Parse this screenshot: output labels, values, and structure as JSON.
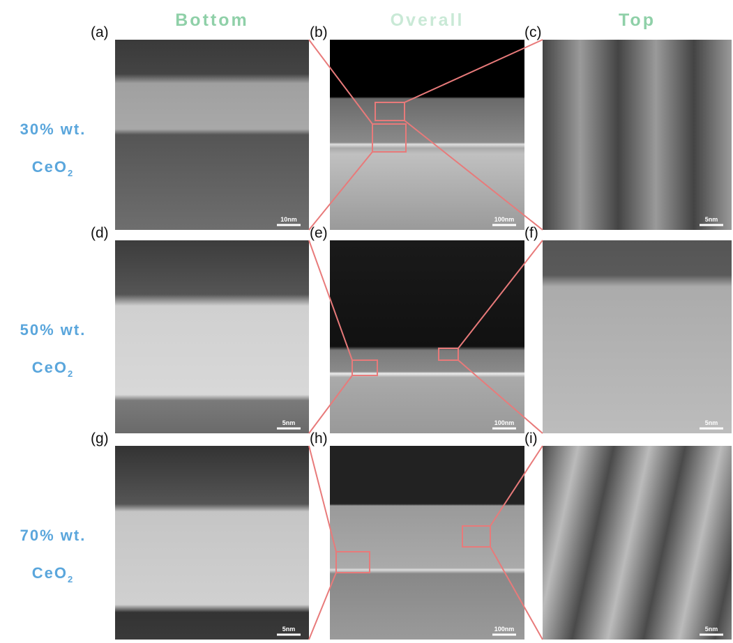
{
  "columns": [
    "Bottom",
    "Overall",
    "Top"
  ],
  "rows": [
    {
      "concentration": "30% wt.",
      "compound": "CeO",
      "subscript": "2",
      "panels": [
        {
          "label": "(a)",
          "scale_bar": "10nm"
        },
        {
          "label": "(b)",
          "scale_bar": "100nm"
        },
        {
          "label": "(c)",
          "scale_bar": "5nm"
        }
      ]
    },
    {
      "concentration": "50% wt.",
      "compound": "CeO",
      "subscript": "2",
      "panels": [
        {
          "label": "(d)",
          "scale_bar": "5nm"
        },
        {
          "label": "(e)",
          "scale_bar": "100nm"
        },
        {
          "label": "(f)",
          "scale_bar": "5nm"
        }
      ]
    },
    {
      "concentration": "70% wt.",
      "compound": "CeO",
      "subscript": "2",
      "panels": [
        {
          "label": "(g)",
          "scale_bar": "5nm"
        },
        {
          "label": "(h)",
          "scale_bar": "100nm"
        },
        {
          "label": "(i)",
          "scale_bar": "5nm"
        }
      ]
    }
  ]
}
